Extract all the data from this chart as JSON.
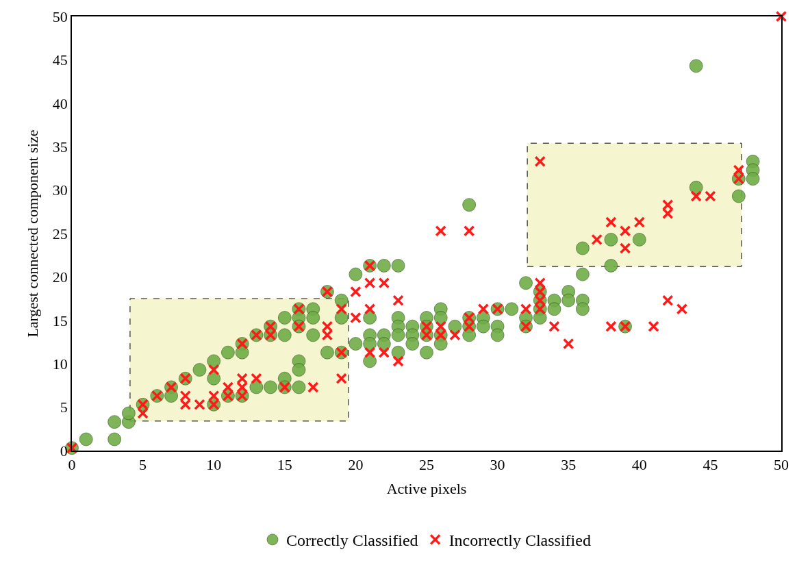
{
  "chart_data": {
    "type": "scatter",
    "xlabel": "Active pixels",
    "ylabel": "Largest connected component size",
    "xlim": [
      0,
      50
    ],
    "ylim": [
      0,
      50
    ],
    "xticks": [
      0,
      5,
      10,
      15,
      20,
      25,
      30,
      35,
      40,
      45,
      50
    ],
    "yticks": [
      0,
      5,
      10,
      15,
      20,
      25,
      30,
      35,
      40,
      45,
      50
    ],
    "legend": "bottom",
    "series": [
      {
        "type": "area",
        "color": "#f5f5d0",
        "line_style": "dashed",
        "marker": "none",
        "x": [
          4.1,
          19.5,
          19.5,
          4.1,
          4.1
        ],
        "values": [
          3.4,
          3.4,
          17.5,
          17.5,
          3.4
        ]
      },
      {
        "type": "area",
        "color": "#f5f5d0",
        "line_style": "dashed",
        "marker": "none",
        "x": [
          32.1,
          47.2,
          47.2,
          32.1,
          32.1
        ],
        "values": [
          21.2,
          21.2,
          35.4,
          35.4,
          21.2
        ]
      },
      {
        "name": "Correctly Classified",
        "color": "#70ad47",
        "marker": "circle",
        "x": [
          0,
          1,
          3,
          3,
          4,
          4,
          5,
          6,
          7,
          7,
          8,
          9,
          10,
          10,
          10,
          11,
          11,
          12,
          12,
          12,
          13,
          13,
          14,
          14,
          14,
          15,
          15,
          15,
          15,
          16,
          16,
          16,
          16,
          16,
          16,
          17,
          17,
          17,
          18,
          18,
          19,
          19,
          19,
          20,
          20,
          21,
          21,
          21,
          21,
          21,
          22,
          22,
          22,
          23,
          23,
          23,
          23,
          23,
          24,
          24,
          24,
          25,
          25,
          25,
          25,
          26,
          26,
          26,
          26,
          27,
          28,
          28,
          28,
          28,
          29,
          29,
          30,
          30,
          30,
          31,
          32,
          32,
          32,
          33,
          33,
          33,
          33,
          34,
          34,
          35,
          35,
          36,
          36,
          36,
          36,
          38,
          38,
          39,
          40,
          44,
          44,
          47,
          47,
          48,
          48,
          48
        ],
        "values": [
          0.3,
          1.3,
          1.3,
          3.3,
          3.3,
          4.3,
          5.3,
          6.3,
          7.3,
          6.3,
          8.3,
          9.3,
          10.3,
          8.3,
          5.3,
          11.3,
          6.3,
          12.3,
          11.3,
          6.3,
          13.3,
          7.3,
          14.3,
          13.3,
          7.3,
          15.3,
          13.3,
          8.3,
          7.3,
          16.3,
          15.3,
          14.3,
          10.3,
          9.3,
          7.3,
          16.3,
          15.3,
          13.3,
          18.3,
          11.3,
          17.3,
          15.3,
          11.3,
          20.3,
          12.3,
          21.3,
          15.3,
          13.3,
          12.3,
          10.3,
          21.3,
          13.3,
          12.3,
          21.3,
          15.3,
          14.3,
          13.3,
          11.3,
          14.3,
          13.3,
          12.3,
          15.3,
          14.3,
          13.3,
          11.3,
          16.3,
          15.3,
          13.3,
          12.3,
          14.3,
          28.3,
          15.3,
          14.3,
          13.3,
          15.3,
          14.3,
          16.3,
          14.3,
          13.3,
          16.3,
          19.3,
          15.3,
          14.3,
          18.3,
          17.3,
          16.3,
          15.3,
          17.3,
          16.3,
          18.3,
          17.3,
          23.3,
          20.3,
          17.3,
          16.3,
          24.3,
          21.3,
          14.3,
          24.3,
          44.3,
          30.3,
          31.3,
          29.3,
          33.3,
          32.3,
          31.3
        ]
      },
      {
        "name": "Incorrectly Classified",
        "color": "#ff1a1a",
        "marker": "cross",
        "x": [
          0,
          5,
          5,
          6,
          7,
          8,
          8,
          8,
          9,
          10,
          10,
          10,
          11,
          11,
          12,
          12,
          12,
          12,
          13,
          13,
          14,
          14,
          15,
          16,
          16,
          17,
          18,
          18,
          18,
          19,
          19,
          19,
          20,
          20,
          21,
          21,
          21,
          21,
          22,
          22,
          23,
          23,
          25,
          25,
          26,
          26,
          26,
          27,
          28,
          28,
          28,
          29,
          30,
          32,
          32,
          33,
          33,
          33,
          33,
          33,
          34,
          35,
          37,
          38,
          38,
          39,
          39,
          39,
          40,
          41,
          42,
          42,
          42,
          43,
          44,
          45,
          47,
          47,
          50
        ],
        "values": [
          0.3,
          5.3,
          4.3,
          6.3,
          7.3,
          8.3,
          6.3,
          5.3,
          5.3,
          9.3,
          6.3,
          5.3,
          7.3,
          6.3,
          12.3,
          8.3,
          7.3,
          6.3,
          13.3,
          8.3,
          14.3,
          13.3,
          7.3,
          16.3,
          14.3,
          7.3,
          18.3,
          14.3,
          13.3,
          16.3,
          11.3,
          8.3,
          18.3,
          15.3,
          21.3,
          19.3,
          16.3,
          11.3,
          19.3,
          11.3,
          17.3,
          10.3,
          14.3,
          13.3,
          25.3,
          14.3,
          13.3,
          13.3,
          25.3,
          15.3,
          14.3,
          16.3,
          16.3,
          16.3,
          14.3,
          33.3,
          19.3,
          18.3,
          17.3,
          16.3,
          14.3,
          12.3,
          24.3,
          26.3,
          14.3,
          25.3,
          23.3,
          14.3,
          26.3,
          14.3,
          28.3,
          27.3,
          17.3,
          16.3,
          29.3,
          29.3,
          32.3,
          31.3,
          50
        ]
      }
    ]
  }
}
